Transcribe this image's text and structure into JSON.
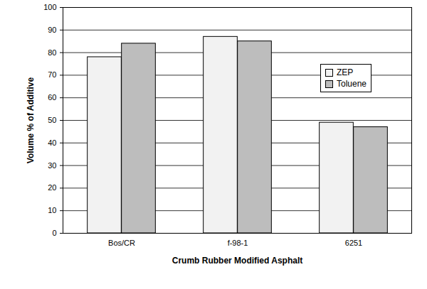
{
  "chart_data": {
    "type": "bar",
    "x_label": "Crumb Rubber Modified Asphalt",
    "y_label": "Volume % of Additive",
    "categories": [
      "Bos/CR",
      "f-98-1",
      "6251"
    ],
    "series": [
      {
        "name": "ZEP",
        "color": "#f2f2f2",
        "values": [
          78,
          87,
          49
        ]
      },
      {
        "name": "Toluene",
        "color": "#bdbdbd",
        "values": [
          84,
          85,
          47
        ]
      }
    ],
    "ylim": [
      0,
      100
    ],
    "yticks": [
      0,
      10,
      20,
      30,
      40,
      50,
      60,
      70,
      80,
      90,
      100
    ],
    "grid": true,
    "legend": "upper right"
  }
}
